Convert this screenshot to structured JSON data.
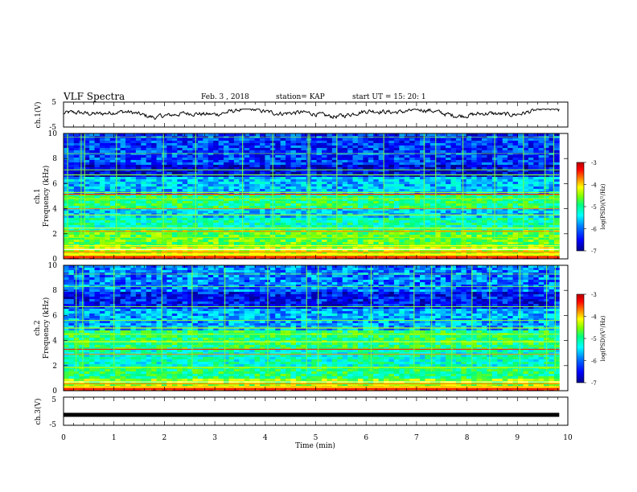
{
  "header": {
    "title": "VLF Spectra",
    "date": "Feb. 3 , 2018",
    "station": "station= KAP",
    "start": "start  UT =  15: 20: 1"
  },
  "chart_data": [
    {
      "type": "line",
      "ylabel": "ch.1(V)",
      "ylim": [
        -5,
        5
      ],
      "yticks": [
        "5",
        "-5"
      ],
      "xlim": [
        0,
        10
      ],
      "data_extent_min": 9.83,
      "series": [
        {
          "color": "#000000",
          "description_values_range": [
            -3,
            1.5
          ]
        }
      ]
    },
    {
      "type": "heatmap",
      "ylabel_line1": "ch.1",
      "ylabel_line2": "Frequency  (kHz)",
      "ylim": [
        0,
        10
      ],
      "yticks": [
        "0",
        "2",
        "4",
        "6",
        "8",
        "10"
      ],
      "colorbar": {
        "label": "log(PSD)(V²/Hz)",
        "range": [
          -7,
          -3
        ],
        "ticks": [
          "-3",
          "-4",
          "-5",
          "-6",
          "-7"
        ]
      },
      "noted_features": {
        "strong_low_freq_band_khz": [
          0,
          1
        ],
        "broad_band_khz": [
          1,
          5.3
        ],
        "quiet_band_khz": [
          6.5,
          10
        ]
      }
    },
    {
      "type": "heatmap",
      "ylabel_line1": "ch.2",
      "ylabel_line2": "Frequency  (kHz)",
      "ylim": [
        0,
        10
      ],
      "yticks": [
        "0",
        "2",
        "4",
        "6",
        "8",
        "10"
      ],
      "colorbar": {
        "label": "log(PSD)(V²/Hz)",
        "range": [
          -7,
          -3
        ],
        "ticks": [
          "-3",
          "-4",
          "-5",
          "-6",
          "-7"
        ]
      }
    },
    {
      "type": "line",
      "ylabel": "ch.3(V)",
      "ylim": [
        -5,
        5
      ],
      "yticks": [
        "5",
        "-5"
      ],
      "series": [
        {
          "color": "#000000",
          "constant_value": -1.3
        }
      ]
    }
  ],
  "xaxis": {
    "label": "Time  (min)",
    "range": [
      0,
      10
    ],
    "ticks": [
      "0",
      "1",
      "2",
      "3",
      "4",
      "5",
      "6",
      "7",
      "8",
      "9",
      "10"
    ]
  },
  "colormap": [
    "#00008b",
    "#0000ff",
    "#0080ff",
    "#00ffff",
    "#00ff80",
    "#80ff00",
    "#ffff00",
    "#ff8000",
    "#ff0000",
    "#b40000"
  ]
}
